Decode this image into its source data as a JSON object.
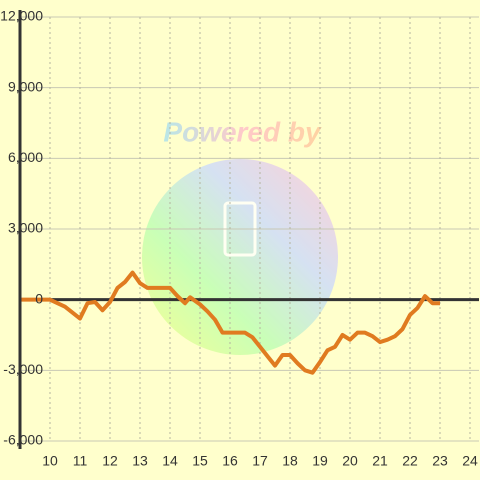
{
  "chart_data": {
    "type": "line",
    "watermark": "Powered by",
    "x": [
      9.0,
      10.0,
      10.5,
      11.0,
      11.25,
      11.5,
      11.75,
      12.0,
      12.25,
      12.5,
      12.75,
      13.0,
      13.25,
      13.75,
      14.0,
      14.25,
      14.5,
      14.67,
      15.0,
      15.25,
      15.5,
      15.75,
      16.25,
      16.5,
      16.75,
      17.0,
      17.25,
      17.5,
      17.75,
      18.0,
      18.25,
      18.5,
      18.75,
      19.0,
      19.25,
      19.5,
      19.75,
      20.0,
      20.25,
      20.5,
      20.75,
      21.0,
      21.25,
      21.5,
      21.75,
      22.0,
      22.25,
      22.5,
      22.75,
      23.0
    ],
    "series": [
      {
        "color": "#e07b20",
        "values": [
          0,
          0,
          -300,
          -800,
          -150,
          -100,
          -450,
          -100,
          500,
          750,
          1150,
          700,
          500,
          500,
          500,
          150,
          -150,
          100,
          -200,
          -500,
          -850,
          -1400,
          -1400,
          -1400,
          -1600,
          -2000,
          -2400,
          -2800,
          -2350,
          -2350,
          -2700,
          -3000,
          -3100,
          -2650,
          -2150,
          -2000,
          -1500,
          -1700,
          -1400,
          -1400,
          -1550,
          -1800,
          -1700,
          -1550,
          -1250,
          -650,
          -350,
          150,
          -150,
          -150
        ]
      }
    ],
    "xlim": [
      9,
      24.3
    ],
    "xticks": [
      10,
      11,
      12,
      13,
      14,
      15,
      16,
      17,
      18,
      19,
      20,
      21,
      22,
      23,
      24
    ],
    "ylim": [
      -6000,
      12000
    ],
    "yticks": [
      {
        "value": -6000,
        "label": "-6,000"
      },
      {
        "value": -3000,
        "label": "-3,000"
      },
      0,
      {
        "value": 3000,
        "label": "3,000"
      },
      {
        "value": 6000,
        "label": "6,000"
      },
      {
        "value": 9000,
        "label": "9,000"
      },
      {
        "value": 12000,
        "label": "12,000"
      }
    ],
    "grid": true
  }
}
